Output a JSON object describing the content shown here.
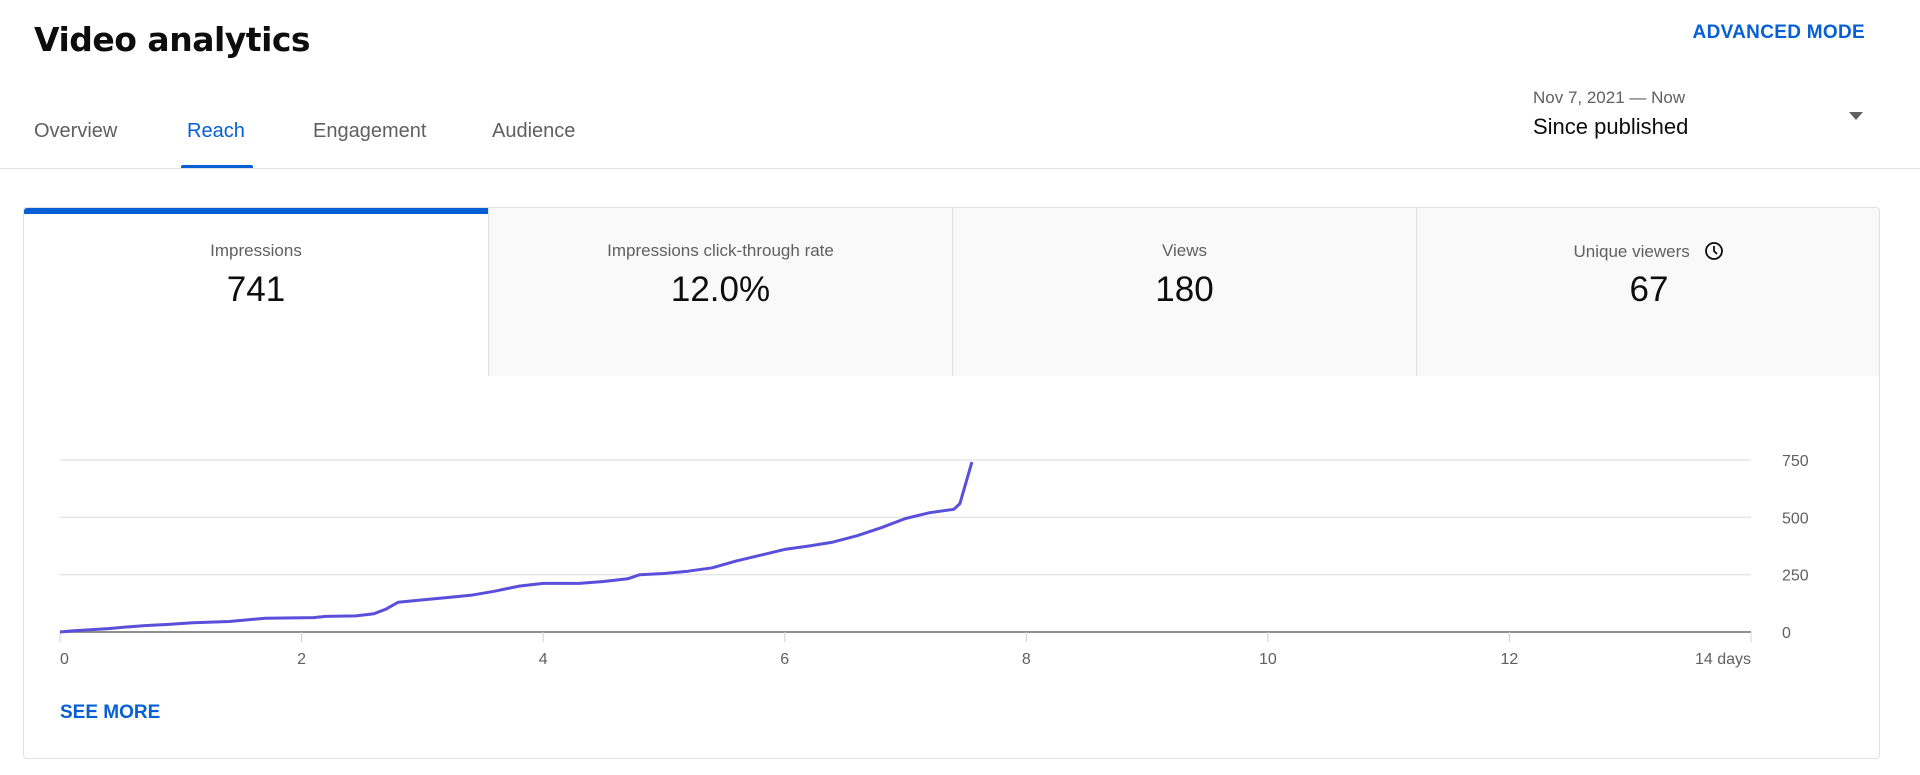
{
  "header": {
    "title": "Video analytics",
    "advanced_mode": "ADVANCED MODE"
  },
  "tabs": [
    {
      "label": "Overview"
    },
    {
      "label": "Reach",
      "active": true
    },
    {
      "label": "Engagement"
    },
    {
      "label": "Audience"
    }
  ],
  "date_picker": {
    "range": "Nov 7, 2021 — Now",
    "period": "Since published",
    "icon": "caret-down-icon"
  },
  "metrics": [
    {
      "label": "Impressions",
      "value": "741",
      "active": true
    },
    {
      "label": "Impressions click-through rate",
      "value": "12.0%"
    },
    {
      "label": "Views",
      "value": "180"
    },
    {
      "label": "Unique viewers",
      "value": "67",
      "icon": "clock-icon"
    }
  ],
  "see_more": "SEE MORE",
  "colors": {
    "accent": "#065fd4",
    "line": "#5a4fdb"
  },
  "chart_data": {
    "type": "line",
    "xlabel": "",
    "ylabel": "",
    "xlim": [
      0,
      14
    ],
    "ylim": [
      0,
      750
    ],
    "x_ticks": [
      "0",
      "2",
      "4",
      "6",
      "8",
      "10",
      "12",
      "14 days"
    ],
    "y_ticks": [
      "0",
      "250",
      "500",
      "750"
    ],
    "y_axis": "right",
    "grid": true,
    "series": [
      {
        "x": [
          0,
          0.1,
          0.25,
          0.4,
          0.55,
          0.7,
          0.9,
          1.1,
          1.4,
          1.7,
          2.1,
          2.2,
          2.45,
          2.6,
          2.7,
          2.8,
          3.0,
          3.2,
          3.4,
          3.6,
          3.8,
          4.0,
          4.3,
          4.5,
          4.7,
          4.8,
          5.0,
          5.2,
          5.4,
          5.6,
          5.8,
          6.0,
          6.2,
          6.4,
          6.6,
          6.8,
          7.0,
          7.2,
          7.4,
          7.45,
          7.55
        ],
        "y": [
          0,
          5,
          10,
          15,
          22,
          28,
          33,
          40,
          46,
          60,
          63,
          68,
          70,
          80,
          100,
          130,
          140,
          150,
          160,
          178,
          200,
          212,
          212,
          220,
          232,
          250,
          255,
          265,
          280,
          310,
          335,
          360,
          375,
          392,
          420,
          455,
          495,
          520,
          535,
          560,
          741
        ]
      }
    ]
  }
}
